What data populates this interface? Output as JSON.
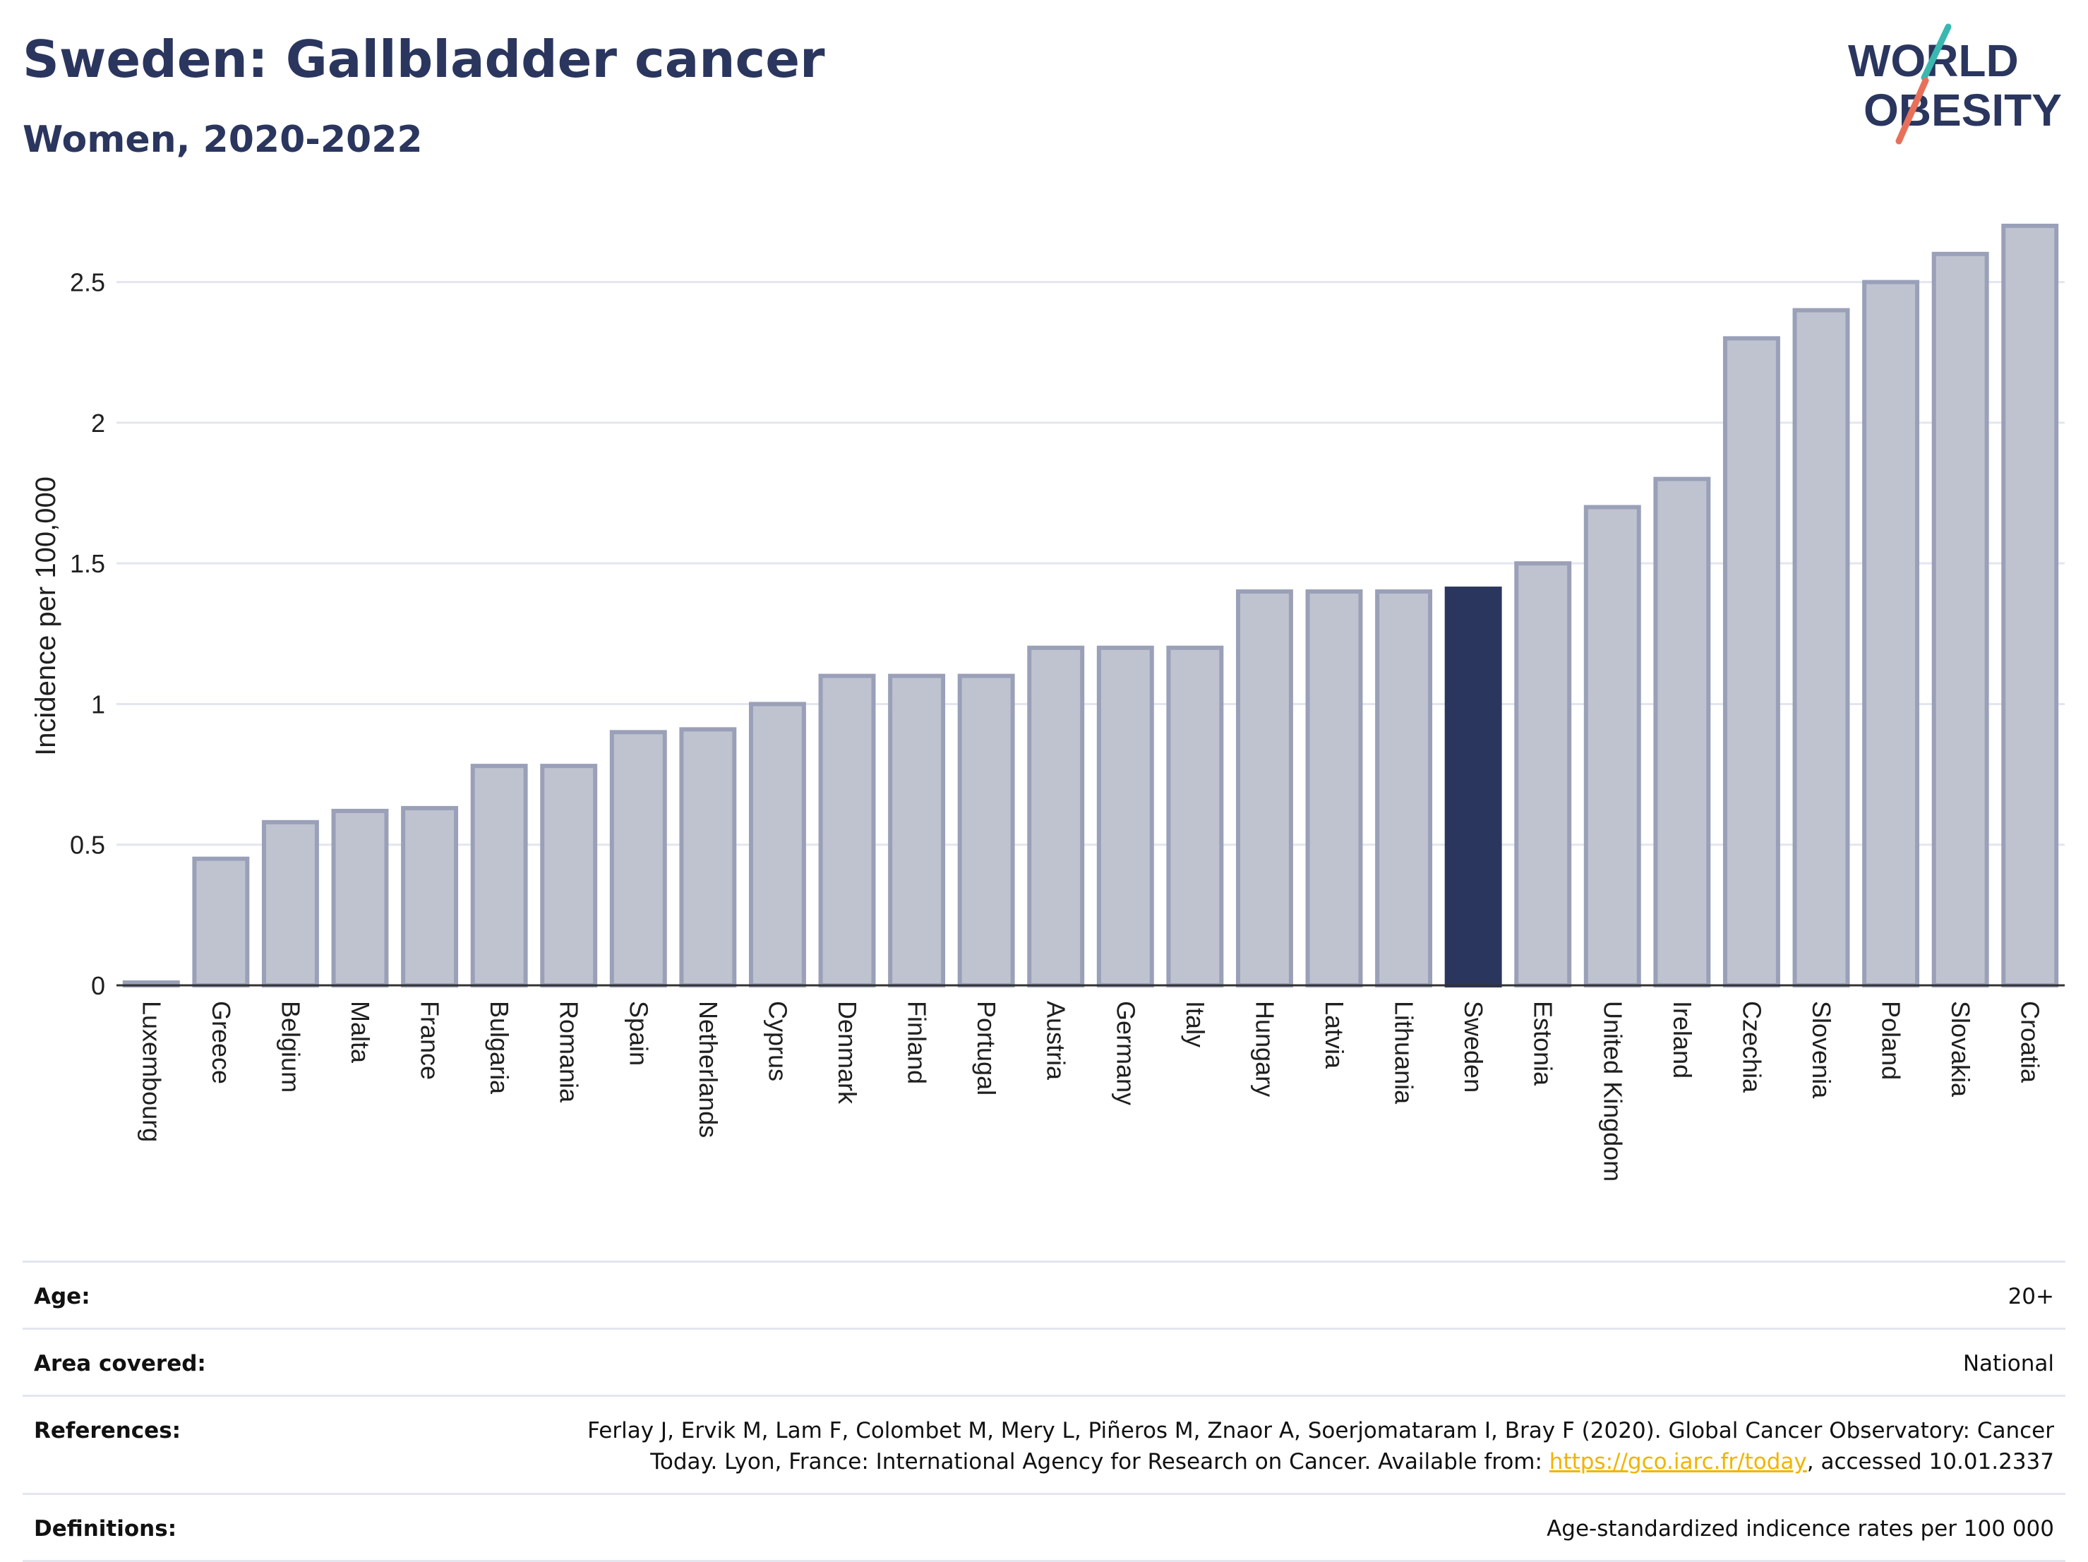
{
  "header": {
    "title": "Sweden: Gallbladder cancer",
    "subtitle": "Women, 2020-2022"
  },
  "logo": {
    "line1": "WORLD",
    "line2": "OBESITY",
    "colors": {
      "text": "#2a365e",
      "slash_top": "#3ab8b0",
      "slash_bottom": "#e8705a"
    }
  },
  "colors": {
    "highlight_bar": "#2a365e",
    "other_bar_fill": "#bfc3d0",
    "other_bar_stroke": "#9aa0b8",
    "grid": "#e3e6ef",
    "axis": "#333333"
  },
  "chart_data": {
    "type": "bar",
    "title": "",
    "xlabel": "",
    "ylabel": "Incidence per 100,000",
    "ylim": [
      0,
      2.75
    ],
    "y_ticks": [
      0,
      0.5,
      1,
      1.5,
      2,
      2.5
    ],
    "y_tick_labels": [
      "0",
      "0.5",
      "1",
      "1.5",
      "2",
      "2.5"
    ],
    "grid": true,
    "highlight": "Sweden",
    "categories": [
      "Luxembourg",
      "Greece",
      "Belgium",
      "Malta",
      "France",
      "Bulgaria",
      "Romania",
      "Spain",
      "Netherlands",
      "Cyprus",
      "Denmark",
      "Finland",
      "Portugal",
      "Austria",
      "Germany",
      "Italy",
      "Hungary",
      "Latvia",
      "Lithuania",
      "Sweden",
      "Estonia",
      "United Kingdom",
      "Ireland",
      "Czechia",
      "Slovenia",
      "Poland",
      "Slovakia",
      "Croatia"
    ],
    "values": [
      0.01,
      0.45,
      0.58,
      0.62,
      0.63,
      0.78,
      0.78,
      0.9,
      0.91,
      1.0,
      1.1,
      1.1,
      1.1,
      1.2,
      1.2,
      1.2,
      1.4,
      1.4,
      1.4,
      1.41,
      1.5,
      1.7,
      1.8,
      2.3,
      2.4,
      2.5,
      2.6,
      2.7
    ]
  },
  "info": {
    "age_label": "Age:",
    "age_value": "20+",
    "area_label": "Area covered:",
    "area_value": "National",
    "references_label": "References:",
    "references_line1": "Ferlay J, Ervik M, Lam F, Colombet M, Mery L, Piñeros M, Znaor A, Soerjomataram I, Bray F (2020). Global Cancer Observatory: Cancer",
    "references_line2_prefix": "Today. Lyon, France: International Agency for Research on Cancer. Available from: ",
    "references_link": "https://gco.iarc.fr/today",
    "references_line2_suffix": ", accessed 10.01.2337",
    "definitions_label": "Definitions:",
    "definitions_value": "Age-standardized indicence rates per 100 000"
  }
}
